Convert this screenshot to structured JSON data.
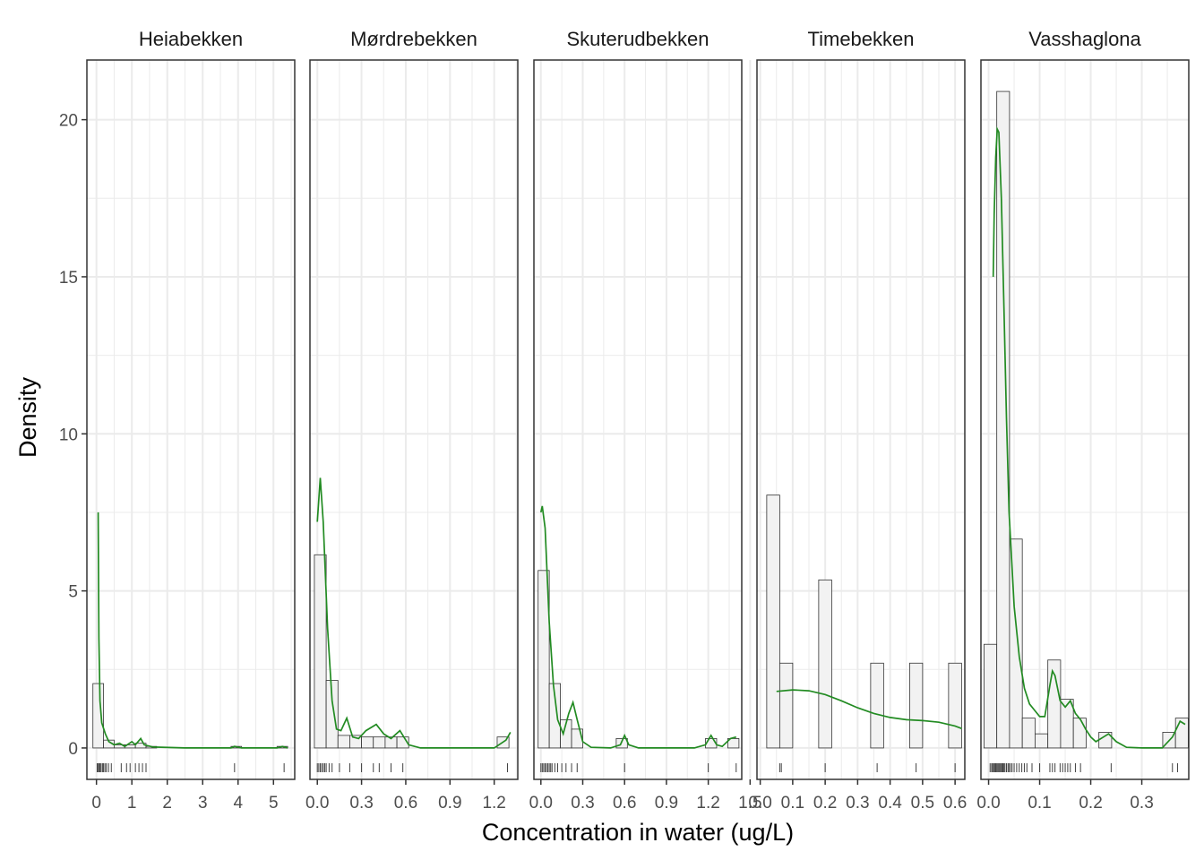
{
  "xlabel": "Concentration in water (ug/L)",
  "ylabel": "Density",
  "y_ticks": [
    "0",
    "5",
    "10",
    "15",
    "20"
  ],
  "colors": {
    "density_line": "#228B22",
    "bar_fill": "#F2F2F2",
    "bar_stroke": "#333333",
    "grid": "#EBEBEB",
    "panel_border": "#333333",
    "rug": "#000000"
  },
  "chart_data": [
    {
      "type": "bar",
      "facet": "Heiabekken",
      "xlim": [
        -0.27,
        5.6
      ],
      "ylim": [
        -1.0,
        21.9
      ],
      "x_ticks": [
        0,
        1,
        2,
        3,
        4,
        5
      ],
      "x_tick_labels": [
        "0",
        "1",
        "2",
        "3",
        "4",
        "5"
      ],
      "bins": [
        [
          -0.1,
          0.2,
          2.05
        ],
        [
          0.2,
          0.5,
          0.25
        ],
        [
          0.5,
          0.8,
          0.1
        ],
        [
          0.8,
          1.1,
          0.1
        ],
        [
          1.1,
          1.4,
          0.15
        ],
        [
          1.4,
          1.7,
          0.05
        ],
        [
          3.8,
          4.1,
          0.05
        ],
        [
          5.1,
          5.4,
          0.05
        ]
      ],
      "density": [
        [
          0.05,
          7.5
        ],
        [
          0.07,
          3.5
        ],
        [
          0.1,
          1.5
        ],
        [
          0.15,
          0.8
        ],
        [
          0.25,
          0.45
        ],
        [
          0.35,
          0.2
        ],
        [
          0.5,
          0.1
        ],
        [
          0.65,
          0.15
        ],
        [
          0.8,
          0.05
        ],
        [
          1.0,
          0.2
        ],
        [
          1.1,
          0.1
        ],
        [
          1.25,
          0.3
        ],
        [
          1.35,
          0.1
        ],
        [
          1.6,
          0.03
        ],
        [
          2.5,
          0.0
        ],
        [
          3.8,
          0.0
        ],
        [
          3.9,
          0.05
        ],
        [
          4.1,
          0.0
        ],
        [
          5.1,
          0.0
        ],
        [
          5.25,
          0.05
        ],
        [
          5.4,
          0.0
        ]
      ],
      "rug": [
        0.02,
        0.05,
        0.08,
        0.1,
        0.13,
        0.17,
        0.2,
        0.24,
        0.28,
        0.34,
        0.42,
        0.7,
        0.85,
        0.95,
        1.1,
        1.2,
        1.3,
        1.4,
        3.9,
        5.3
      ]
    },
    {
      "type": "bar",
      "facet": "Mørdrebekken",
      "xlim": [
        -0.05,
        1.36
      ],
      "ylim": [
        -1.0,
        21.9
      ],
      "x_ticks": [
        0,
        0.3,
        0.6,
        0.9,
        1.2
      ],
      "x_tick_labels": [
        "0.0",
        "0.3",
        "0.6",
        "0.9",
        "1.2"
      ],
      "bins": [
        [
          -0.02,
          0.06,
          6.15
        ],
        [
          0.06,
          0.14,
          2.15
        ],
        [
          0.14,
          0.22,
          0.4
        ],
        [
          0.22,
          0.3,
          0.4
        ],
        [
          0.3,
          0.38,
          0.35
        ],
        [
          0.38,
          0.46,
          0.35
        ],
        [
          0.46,
          0.54,
          0.35
        ],
        [
          0.54,
          0.62,
          0.35
        ],
        [
          1.22,
          1.3,
          0.35
        ]
      ],
      "density": [
        [
          0.0,
          7.2
        ],
        [
          0.02,
          8.6
        ],
        [
          0.04,
          7.2
        ],
        [
          0.07,
          3.8
        ],
        [
          0.1,
          1.5
        ],
        [
          0.13,
          0.6
        ],
        [
          0.16,
          0.55
        ],
        [
          0.2,
          0.95
        ],
        [
          0.24,
          0.35
        ],
        [
          0.28,
          0.3
        ],
        [
          0.33,
          0.55
        ],
        [
          0.4,
          0.75
        ],
        [
          0.45,
          0.45
        ],
        [
          0.5,
          0.3
        ],
        [
          0.56,
          0.55
        ],
        [
          0.62,
          0.1
        ],
        [
          0.7,
          0.0
        ],
        [
          1.0,
          0.0
        ],
        [
          1.2,
          0.0
        ],
        [
          1.28,
          0.25
        ],
        [
          1.31,
          0.5
        ]
      ],
      "rug": [
        0.0,
        0.01,
        0.02,
        0.03,
        0.04,
        0.05,
        0.06,
        0.08,
        0.1,
        0.15,
        0.22,
        0.3,
        0.38,
        0.42,
        0.5,
        0.58,
        1.29
      ]
    },
    {
      "type": "bar",
      "facet": "Skuterudbekken",
      "xlim": [
        -0.05,
        1.44
      ],
      "ylim": [
        -1.0,
        21.9
      ],
      "x_ticks": [
        0,
        0.3,
        0.6,
        0.9,
        1.2,
        1.5
      ],
      "x_tick_labels": [
        "0.0",
        "0.3",
        "0.6",
        "0.9",
        "1.2",
        "1.5"
      ],
      "bins": [
        [
          -0.02,
          0.06,
          5.65
        ],
        [
          0.06,
          0.14,
          2.05
        ],
        [
          0.14,
          0.22,
          0.9
        ],
        [
          0.22,
          0.3,
          0.6
        ],
        [
          0.54,
          0.62,
          0.3
        ],
        [
          1.18,
          1.26,
          0.3
        ],
        [
          1.34,
          1.42,
          0.3
        ]
      ],
      "density": [
        [
          0.0,
          7.5
        ],
        [
          0.01,
          7.7
        ],
        [
          0.03,
          7.0
        ],
        [
          0.06,
          4.0
        ],
        [
          0.09,
          2.0
        ],
        [
          0.12,
          0.9
        ],
        [
          0.16,
          0.45
        ],
        [
          0.2,
          1.1
        ],
        [
          0.23,
          1.45
        ],
        [
          0.26,
          0.9
        ],
        [
          0.3,
          0.2
        ],
        [
          0.36,
          0.02
        ],
        [
          0.5,
          0.0
        ],
        [
          0.57,
          0.1
        ],
        [
          0.6,
          0.4
        ],
        [
          0.63,
          0.1
        ],
        [
          0.7,
          0.0
        ],
        [
          1.1,
          0.0
        ],
        [
          1.18,
          0.1
        ],
        [
          1.22,
          0.4
        ],
        [
          1.26,
          0.1
        ],
        [
          1.3,
          0.05
        ],
        [
          1.36,
          0.3
        ],
        [
          1.4,
          0.35
        ]
      ],
      "rug": [
        0.0,
        0.01,
        0.02,
        0.03,
        0.04,
        0.05,
        0.06,
        0.07,
        0.08,
        0.1,
        0.12,
        0.15,
        0.18,
        0.22,
        0.26,
        0.6,
        1.2,
        1.4
      ]
    },
    {
      "type": "bar",
      "facet": "Timebekken",
      "xlim": [
        -0.01,
        0.63
      ],
      "ylim": [
        -1.0,
        21.9
      ],
      "x_ticks": [
        0,
        0.1,
        0.2,
        0.3,
        0.4,
        0.5,
        0.6
      ],
      "x_tick_labels": [
        "0.0",
        "0.1",
        "0.2",
        "0.3",
        "0.4",
        "0.5",
        "0.6"
      ],
      "bins": [
        [
          0.02,
          0.06,
          8.05
        ],
        [
          0.06,
          0.1,
          2.7
        ],
        [
          0.18,
          0.22,
          5.35
        ],
        [
          0.34,
          0.38,
          2.7
        ],
        [
          0.46,
          0.5,
          2.7
        ],
        [
          0.58,
          0.62,
          2.7
        ]
      ],
      "density": [
        [
          0.05,
          1.8
        ],
        [
          0.1,
          1.85
        ],
        [
          0.15,
          1.82
        ],
        [
          0.2,
          1.7
        ],
        [
          0.25,
          1.5
        ],
        [
          0.3,
          1.28
        ],
        [
          0.35,
          1.1
        ],
        [
          0.4,
          0.97
        ],
        [
          0.45,
          0.9
        ],
        [
          0.5,
          0.87
        ],
        [
          0.55,
          0.82
        ],
        [
          0.6,
          0.7
        ],
        [
          0.62,
          0.62
        ]
      ],
      "rug": [
        0.06,
        0.065,
        0.2,
        0.36,
        0.48,
        0.6
      ]
    },
    {
      "type": "bar",
      "facet": "Vasshaglona",
      "xlim": [
        -0.015,
        0.392
      ],
      "ylim": [
        -1.0,
        21.9
      ],
      "x_ticks": [
        0,
        0.1,
        0.2,
        0.3
      ],
      "x_tick_labels": [
        "0.0",
        "0.1",
        "0.2",
        "0.3"
      ],
      "bins": [
        [
          -0.009,
          0.016,
          3.3
        ],
        [
          0.016,
          0.041,
          20.9
        ],
        [
          0.041,
          0.066,
          6.65
        ],
        [
          0.066,
          0.091,
          0.95
        ],
        [
          0.091,
          0.116,
          0.45
        ],
        [
          0.116,
          0.141,
          2.8
        ],
        [
          0.141,
          0.166,
          1.55
        ],
        [
          0.166,
          0.191,
          0.95
        ],
        [
          0.216,
          0.241,
          0.5
        ],
        [
          0.341,
          0.366,
          0.5
        ],
        [
          0.366,
          0.391,
          0.95
        ]
      ],
      "density": [
        [
          0.009,
          15.0
        ],
        [
          0.011,
          17.0
        ],
        [
          0.014,
          18.8
        ],
        [
          0.017,
          19.7
        ],
        [
          0.02,
          19.6
        ],
        [
          0.025,
          17.5
        ],
        [
          0.03,
          14.0
        ],
        [
          0.035,
          10.5
        ],
        [
          0.04,
          7.5
        ],
        [
          0.05,
          4.5
        ],
        [
          0.06,
          2.9
        ],
        [
          0.07,
          1.9
        ],
        [
          0.08,
          1.4
        ],
        [
          0.09,
          1.2
        ],
        [
          0.1,
          1.0
        ],
        [
          0.11,
          1.0
        ],
        [
          0.12,
          2.0
        ],
        [
          0.125,
          2.45
        ],
        [
          0.13,
          2.3
        ],
        [
          0.14,
          1.5
        ],
        [
          0.15,
          1.3
        ],
        [
          0.16,
          1.5
        ],
        [
          0.17,
          1.1
        ],
        [
          0.18,
          0.9
        ],
        [
          0.19,
          0.6
        ],
        [
          0.2,
          0.35
        ],
        [
          0.21,
          0.2
        ],
        [
          0.225,
          0.35
        ],
        [
          0.235,
          0.45
        ],
        [
          0.25,
          0.2
        ],
        [
          0.27,
          0.02
        ],
        [
          0.3,
          0.0
        ],
        [
          0.34,
          0.0
        ],
        [
          0.36,
          0.35
        ],
        [
          0.375,
          0.85
        ],
        [
          0.385,
          0.75
        ]
      ],
      "rug": [
        0.003,
        0.006,
        0.008,
        0.01,
        0.012,
        0.014,
        0.016,
        0.018,
        0.02,
        0.022,
        0.024,
        0.026,
        0.028,
        0.03,
        0.032,
        0.035,
        0.038,
        0.04,
        0.043,
        0.046,
        0.05,
        0.055,
        0.06,
        0.065,
        0.07,
        0.075,
        0.085,
        0.1,
        0.12,
        0.125,
        0.13,
        0.14,
        0.145,
        0.15,
        0.155,
        0.16,
        0.17,
        0.18,
        0.24,
        0.36,
        0.37
      ]
    }
  ]
}
